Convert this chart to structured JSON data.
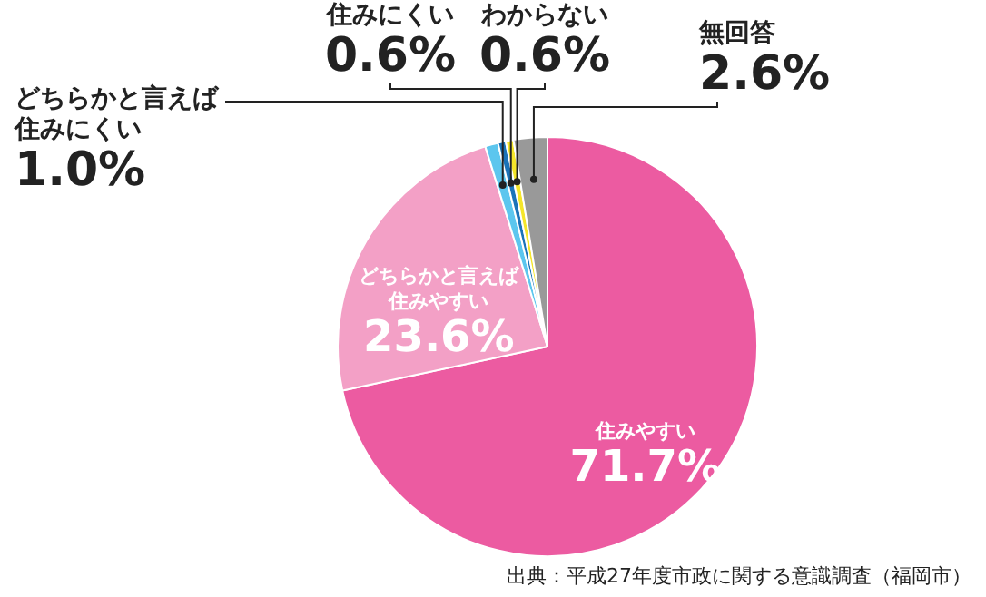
{
  "chart_data": {
    "type": "pie",
    "categories": [
      "住みやすい",
      "どちらかと言えば住みやすい",
      "どちらかと言えば住みにくい",
      "住みにくい",
      "わからない",
      "無回答"
    ],
    "values": [
      71.7,
      23.6,
      1.0,
      0.6,
      0.6,
      2.6
    ],
    "colors": [
      "#ec5ba1",
      "#f3a0c6",
      "#5cc6ee",
      "#1b73b8",
      "#f5e62a",
      "#999999"
    ],
    "value_labels": [
      "71.7%",
      "23.6%",
      "1.0%",
      "0.6%",
      "0.6%",
      "2.6%"
    ],
    "legend": false,
    "annotations": [
      "出典：平成27年度市政に関する意識調査（福岡市）"
    ]
  }
}
